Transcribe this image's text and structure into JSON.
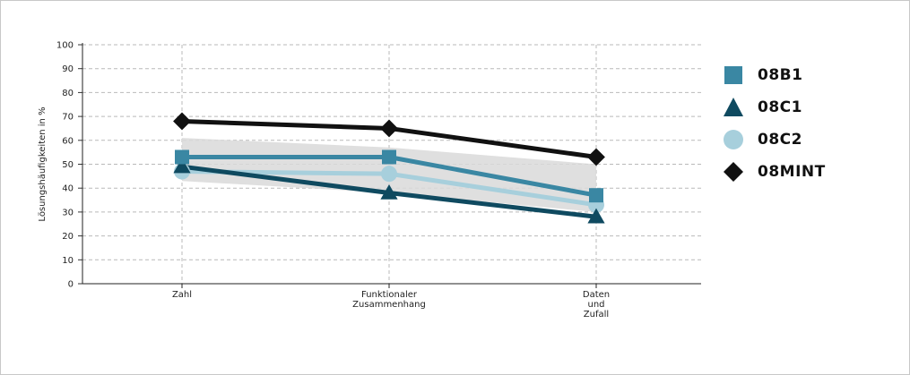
{
  "colors": {
    "08B1": "#3a87a3",
    "08C1": "#0f4a60",
    "08C2": "#a7cfdc",
    "08MINT": "#111111",
    "band": "#d9d9d9",
    "grid": "#b9b9b9"
  },
  "chart_data": {
    "type": "line",
    "categories": [
      [
        "Zahl"
      ],
      [
        "Funktionaler",
        "Zusammenhang"
      ],
      [
        "Daten",
        "und",
        "Zufall"
      ]
    ],
    "ylabel": "Lösungshäufigkeiten in %",
    "ylim": [
      0,
      100
    ],
    "yticks": [
      0,
      10,
      20,
      30,
      40,
      50,
      60,
      70,
      80,
      90,
      100
    ],
    "grid": true,
    "legend_position": "right",
    "band": {
      "low": [
        43,
        38,
        30
      ],
      "high": [
        61,
        57,
        50
      ]
    },
    "series": [
      {
        "name": "08B1",
        "marker": "square",
        "values": [
          53,
          53,
          37
        ]
      },
      {
        "name": "08C1",
        "marker": "triangle",
        "values": [
          49,
          38,
          28
        ]
      },
      {
        "name": "08C2",
        "marker": "circle",
        "values": [
          47,
          46,
          33
        ]
      },
      {
        "name": "08MINT",
        "marker": "diamond",
        "values": [
          68,
          65,
          53
        ]
      }
    ]
  }
}
